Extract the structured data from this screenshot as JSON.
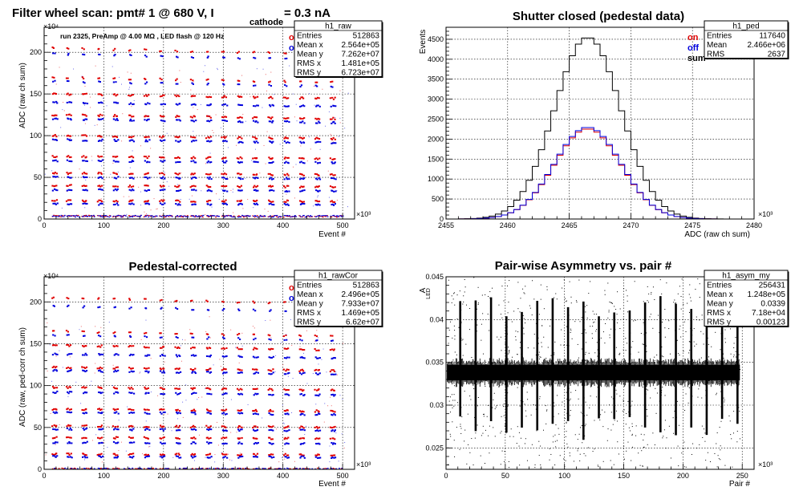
{
  "colors": {
    "on": "#e00000",
    "off": "#0000dd",
    "sum": "#000000",
    "bg": "#ffffff"
  },
  "panels": [
    {
      "title_main": "Filter wheel scan: pmt#   1 @   680 V, I",
      "title_sub": "cathode",
      "title_tail": "= 0.3 nA",
      "note": "run 2325, PreAmp @ 4.00 MΩ , LED flash @  120 Hz",
      "xlabel": "Event #",
      "ylabel": "ADC (raw ch sum)",
      "xmult": "×10³",
      "ymult": "×10⁴",
      "legend": [
        "on",
        "off"
      ],
      "stats": {
        "name": "h1_raw",
        "rows": [
          [
            "Entries",
            "512863"
          ],
          [
            "Mean x",
            "2.564e+05"
          ],
          [
            "Mean y",
            "7.262e+07"
          ],
          [
            "RMS x",
            "1.481e+05"
          ],
          [
            "RMS y",
            "6.723e+07"
          ]
        ]
      }
    },
    {
      "title": "Shutter closed (pedestal data)",
      "xlabel": "ADC (raw ch sum)",
      "ylabel": "Events",
      "xmult": "×10³",
      "legend": [
        "on",
        "off",
        "sum"
      ],
      "stats": {
        "name": "h1_ped",
        "rows": [
          [
            "Entries",
            "117640"
          ],
          [
            "Mean",
            "2.466e+06"
          ],
          [
            "RMS",
            "2637"
          ]
        ]
      }
    },
    {
      "title": "Pedestal-corrected",
      "xlabel": "Event #",
      "ylabel": "ADC (raw, ped-corr ch sum)",
      "xmult": "×10³",
      "ymult": "×10⁴",
      "legend": [
        "on",
        "off"
      ],
      "stats": {
        "name": "h1_rawCor",
        "rows": [
          [
            "Entries",
            "512863"
          ],
          [
            "Mean x",
            "2.496e+05"
          ],
          [
            "Mean y",
            "7.933e+07"
          ],
          [
            "RMS x",
            "1.469e+05"
          ],
          [
            "RMS y",
            "6.62e+07"
          ]
        ]
      }
    },
    {
      "title": "Pair-wise Asymmetry vs. pair #",
      "xlabel": "Pair #",
      "ylabel": "A",
      "ylabel_sub": "LED",
      "xmult": "×10³",
      "stats": {
        "name": "h1_asym_my",
        "rows": [
          [
            "Entries",
            "256431"
          ],
          [
            "Mean x",
            "1.248e+05"
          ],
          [
            "Mean y",
            "0.0339"
          ],
          [
            "RMS x",
            "7.18e+04"
          ],
          [
            "RMS y",
            "0.00123"
          ]
        ]
      }
    }
  ],
  "chart_data": [
    {
      "type": "scatter",
      "title": "Filter wheel scan: pmt#   1 @   680 V, I cathode = 0.3 nA",
      "xlabel": "Event #",
      "ylabel": "ADC (raw ch sum)",
      "xlim": [
        0,
        520
      ],
      "ylim": [
        0,
        230
      ],
      "xticks": [
        0,
        100,
        200,
        300,
        400,
        500
      ],
      "yticks": [
        0,
        50,
        100,
        150,
        200
      ],
      "grid": true,
      "legend_position": "top-right",
      "step_x_starts": [
        12,
        36,
        62,
        88,
        114,
        140,
        166,
        192,
        218,
        244,
        270,
        296,
        322,
        348,
        374,
        400,
        426,
        452,
        478
      ],
      "series": [
        {
          "name": "on",
          "color": "#e00000",
          "levels": [
            3,
            22,
            40,
            55,
            75,
            100,
            125,
            150,
            170,
            205
          ]
        },
        {
          "name": "off",
          "color": "#0000dd",
          "levels": [
            3,
            18,
            35,
            50,
            70,
            95,
            120,
            140,
            165,
            198
          ]
        }
      ]
    },
    {
      "type": "line",
      "title": "Shutter closed (pedestal data)",
      "xlabel": "ADC (raw ch sum)",
      "ylabel": "Events",
      "xlim": [
        2455,
        2480
      ],
      "ylim": [
        0,
        4800
      ],
      "xticks": [
        2455,
        2460,
        2465,
        2470,
        2475,
        2480
      ],
      "yticks": [
        0,
        500,
        1000,
        1500,
        2000,
        2500,
        3000,
        3500,
        4000,
        4500
      ],
      "grid": true,
      "legend_position": "top-right",
      "series": [
        {
          "name": "sum",
          "color": "#000000",
          "mean": 2466.5,
          "sigma": 2.7,
          "peak": 4550
        },
        {
          "name": "on",
          "color": "#e00000",
          "mean": 2466.5,
          "sigma": 2.7,
          "peak": 2260
        },
        {
          "name": "off",
          "color": "#0000dd",
          "mean": 2466.5,
          "sigma": 2.7,
          "peak": 2300
        }
      ]
    },
    {
      "type": "scatter",
      "title": "Pedestal-corrected",
      "xlabel": "Event #",
      "ylabel": "ADC (raw, ped-corr ch sum)",
      "xlim": [
        0,
        520
      ],
      "ylim": [
        0,
        230
      ],
      "xticks": [
        0,
        100,
        200,
        300,
        400,
        500
      ],
      "yticks": [
        0,
        50,
        100,
        150,
        200
      ],
      "grid": true,
      "legend_position": "top-right",
      "step_x_starts": [
        12,
        36,
        62,
        88,
        114,
        140,
        166,
        192,
        218,
        244,
        270,
        296,
        322,
        348,
        374,
        400,
        426,
        452,
        478
      ],
      "series": [
        {
          "name": "on",
          "color": "#e00000",
          "levels": [
            0,
            18,
            38,
            52,
            72,
            98,
            122,
            148,
            165,
            205
          ]
        },
        {
          "name": "off",
          "color": "#0000dd",
          "levels": [
            0,
            15,
            32,
            48,
            68,
            92,
            118,
            138,
            160,
            195
          ]
        }
      ]
    },
    {
      "type": "scatter",
      "title": "Pair-wise Asymmetry vs. pair #",
      "xlabel": "Pair #",
      "ylabel": "A LED",
      "xlim": [
        0,
        260
      ],
      "ylim": [
        0.0225,
        0.045
      ],
      "xticks": [
        0,
        50,
        100,
        150,
        200,
        250
      ],
      "yticks": [
        0.025,
        0.03,
        0.035,
        0.04,
        0.045
      ],
      "grid": true,
      "band_center": 0.0338,
      "band_halfwidth": 0.0009,
      "x_end": 248,
      "spike_x": [
        12,
        25,
        38,
        51,
        64,
        77,
        90,
        103,
        116,
        129,
        142,
        155,
        168,
        181,
        194,
        207,
        220,
        233,
        246
      ]
    }
  ]
}
